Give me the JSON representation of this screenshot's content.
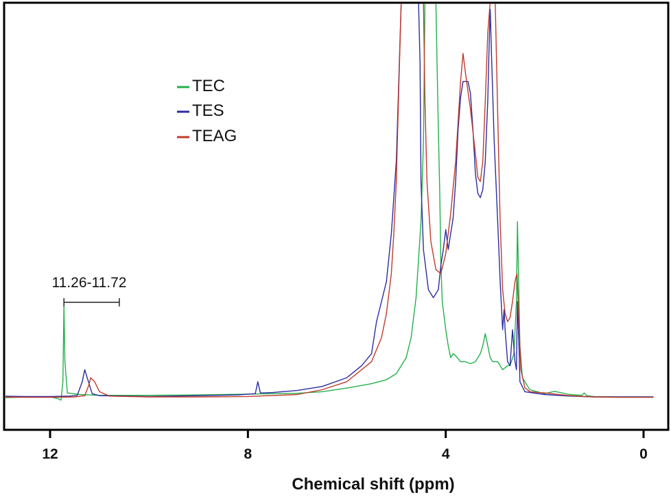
{
  "chart_data": {
    "type": "line",
    "title": "",
    "xlabel": "Chemical shift (ppm)",
    "ylabel": "",
    "xlim": [
      13.0,
      -0.2
    ],
    "x_reversed": true,
    "ylim": [
      0,
      100
    ],
    "xticks": [
      12,
      8,
      4,
      0
    ],
    "xtick_labels": [
      "12",
      "8",
      "4",
      "0"
    ],
    "grid": false,
    "legend_position": "top-left",
    "series": [
      {
        "name": "TEC",
        "color": "#22b04a",
        "points": [
          [
            13.0,
            1.0
          ],
          [
            12.4,
            1.2
          ],
          [
            12.0,
            1.2
          ],
          [
            11.85,
            0.8
          ],
          [
            11.78,
            0.4
          ],
          [
            11.74,
            5
          ],
          [
            11.72,
            24
          ],
          [
            11.7,
            10
          ],
          [
            11.65,
            2.2
          ],
          [
            11.4,
            1.8
          ],
          [
            11.0,
            1.6
          ],
          [
            10.0,
            1.6
          ],
          [
            9.0,
            1.7
          ],
          [
            8.0,
            1.9
          ],
          [
            7.0,
            2.1
          ],
          [
            6.5,
            2.5
          ],
          [
            6.0,
            3.4
          ],
          [
            5.5,
            4.5
          ],
          [
            5.2,
            5.5
          ],
          [
            5.0,
            7
          ],
          [
            4.8,
            11
          ],
          [
            4.7,
            16
          ],
          [
            4.6,
            26
          ],
          [
            4.5,
            45
          ],
          [
            4.45,
            65
          ],
          [
            4.42,
            100
          ],
          [
            4.2,
            100
          ],
          [
            4.15,
            68
          ],
          [
            4.12,
            52
          ],
          [
            4.1,
            35
          ],
          [
            4.07,
            25
          ],
          [
            4.0,
            18
          ],
          [
            3.95,
            14
          ],
          [
            3.9,
            11
          ],
          [
            3.85,
            12
          ],
          [
            3.8,
            11.5
          ],
          [
            3.7,
            10
          ],
          [
            3.6,
            10
          ],
          [
            3.5,
            9.5
          ],
          [
            3.4,
            10
          ],
          [
            3.3,
            12
          ],
          [
            3.25,
            14
          ],
          [
            3.2,
            17
          ],
          [
            3.15,
            14
          ],
          [
            3.1,
            11
          ],
          [
            3.05,
            10
          ],
          [
            2.95,
            10
          ],
          [
            2.85,
            8
          ],
          [
            2.75,
            9
          ],
          [
            2.7,
            9
          ],
          [
            2.62,
            12
          ],
          [
            2.57,
            25
          ],
          [
            2.55,
            45
          ],
          [
            2.53,
            33
          ],
          [
            2.5,
            14
          ],
          [
            2.45,
            6
          ],
          [
            2.3,
            3
          ],
          [
            2.0,
            2
          ],
          [
            1.8,
            2.6
          ],
          [
            1.5,
            1.8
          ],
          [
            1.25,
            1.6
          ],
          [
            1.2,
            2.2
          ],
          [
            1.15,
            1.5
          ],
          [
            1.0,
            1.3
          ],
          [
            0.5,
            1.2
          ],
          [
            -0.2,
            1.2
          ]
        ]
      },
      {
        "name": "TES",
        "color": "#2b2ba1",
        "points": [
          [
            13.0,
            1.4
          ],
          [
            12.5,
            1.3
          ],
          [
            12.0,
            1.3
          ],
          [
            11.6,
            1.4
          ],
          [
            11.45,
            1.6
          ],
          [
            11.35,
            5
          ],
          [
            11.3,
            8
          ],
          [
            11.25,
            6
          ],
          [
            11.15,
            2
          ],
          [
            11.0,
            1.5
          ],
          [
            10.0,
            1.3
          ],
          [
            9.0,
            1.5
          ],
          [
            8.2,
            1.7
          ],
          [
            7.85,
            2
          ],
          [
            7.8,
            5
          ],
          [
            7.75,
            2.2
          ],
          [
            7.5,
            2.3
          ],
          [
            7.0,
            2.8
          ],
          [
            6.5,
            3.8
          ],
          [
            6.0,
            6
          ],
          [
            5.7,
            9
          ],
          [
            5.5,
            12
          ],
          [
            5.4,
            20
          ],
          [
            5.3,
            25
          ],
          [
            5.2,
            30
          ],
          [
            5.1,
            42
          ],
          [
            5.0,
            60
          ],
          [
            4.95,
            80
          ],
          [
            4.9,
            100
          ],
          [
            4.55,
            100
          ],
          [
            4.52,
            85
          ],
          [
            4.5,
            55
          ],
          [
            4.45,
            38
          ],
          [
            4.35,
            28
          ],
          [
            4.25,
            26
          ],
          [
            4.15,
            28
          ],
          [
            4.1,
            34
          ],
          [
            4.05,
            38
          ],
          [
            4.0,
            43
          ],
          [
            3.95,
            38
          ],
          [
            3.9,
            42
          ],
          [
            3.85,
            46
          ],
          [
            3.8,
            55
          ],
          [
            3.75,
            68
          ],
          [
            3.7,
            76
          ],
          [
            3.65,
            80
          ],
          [
            3.6,
            80
          ],
          [
            3.55,
            80
          ],
          [
            3.5,
            77
          ],
          [
            3.45,
            68
          ],
          [
            3.4,
            57
          ],
          [
            3.35,
            52
          ],
          [
            3.3,
            51
          ],
          [
            3.25,
            53
          ],
          [
            3.2,
            60
          ],
          [
            3.15,
            75
          ],
          [
            3.12,
            90
          ],
          [
            3.1,
            98
          ],
          [
            3.07,
            85
          ],
          [
            3.02,
            65
          ],
          [
            2.95,
            45
          ],
          [
            2.9,
            30
          ],
          [
            2.85,
            18
          ],
          [
            2.82,
            23
          ],
          [
            2.8,
            18
          ],
          [
            2.75,
            10
          ],
          [
            2.7,
            9
          ],
          [
            2.65,
            18
          ],
          [
            2.6,
            10
          ],
          [
            2.57,
            8
          ],
          [
            2.55,
            25
          ],
          [
            2.52,
            14
          ],
          [
            2.5,
            5
          ],
          [
            2.4,
            2.5
          ],
          [
            2.0,
            1.8
          ],
          [
            1.5,
            1.4
          ],
          [
            1.0,
            1.2
          ],
          [
            0.5,
            1.2
          ],
          [
            -0.2,
            1.2
          ]
        ]
      },
      {
        "name": "TEAG",
        "color": "#c0392b",
        "points": [
          [
            13.0,
            1.2
          ],
          [
            12.5,
            1.1
          ],
          [
            12.0,
            1.1
          ],
          [
            11.5,
            1.2
          ],
          [
            11.3,
            1.5
          ],
          [
            11.22,
            4
          ],
          [
            11.18,
            6
          ],
          [
            11.1,
            5
          ],
          [
            11.0,
            2.5
          ],
          [
            10.8,
            1.4
          ],
          [
            10.0,
            1.2
          ],
          [
            9.0,
            1.2
          ],
          [
            8.0,
            1.3
          ],
          [
            7.0,
            1.8
          ],
          [
            6.5,
            3
          ],
          [
            6.0,
            5
          ],
          [
            5.5,
            10
          ],
          [
            5.3,
            16
          ],
          [
            5.2,
            22
          ],
          [
            5.1,
            32
          ],
          [
            5.05,
            42
          ],
          [
            5.0,
            55
          ],
          [
            4.95,
            78
          ],
          [
            4.9,
            100
          ],
          [
            4.45,
            100
          ],
          [
            4.42,
            75
          ],
          [
            4.38,
            55
          ],
          [
            4.3,
            40
          ],
          [
            4.2,
            33
          ],
          [
            4.1,
            32
          ],
          [
            4.0,
            37
          ],
          [
            3.9,
            47
          ],
          [
            3.8,
            60
          ],
          [
            3.7,
            80
          ],
          [
            3.65,
            87
          ],
          [
            3.6,
            82
          ],
          [
            3.5,
            73
          ],
          [
            3.4,
            62
          ],
          [
            3.35,
            56
          ],
          [
            3.3,
            55
          ],
          [
            3.25,
            60
          ],
          [
            3.2,
            75
          ],
          [
            3.15,
            92
          ],
          [
            3.1,
            100
          ],
          [
            3.0,
            100
          ],
          [
            2.95,
            72
          ],
          [
            2.9,
            45
          ],
          [
            2.85,
            28
          ],
          [
            2.8,
            22
          ],
          [
            2.75,
            20
          ],
          [
            2.7,
            21
          ],
          [
            2.65,
            25
          ],
          [
            2.6,
            30
          ],
          [
            2.56,
            32
          ],
          [
            2.52,
            20
          ],
          [
            2.48,
            8
          ],
          [
            2.4,
            3.5
          ],
          [
            2.3,
            2.5
          ],
          [
            2.0,
            2.2
          ],
          [
            1.5,
            1.5
          ],
          [
            1.0,
            1.2
          ],
          [
            0.5,
            1.1
          ],
          [
            -0.2,
            1.1
          ]
        ]
      }
    ],
    "annotations": [
      {
        "text": "11.26-11.72",
        "from": 11.72,
        "to": 10.6
      }
    ]
  }
}
